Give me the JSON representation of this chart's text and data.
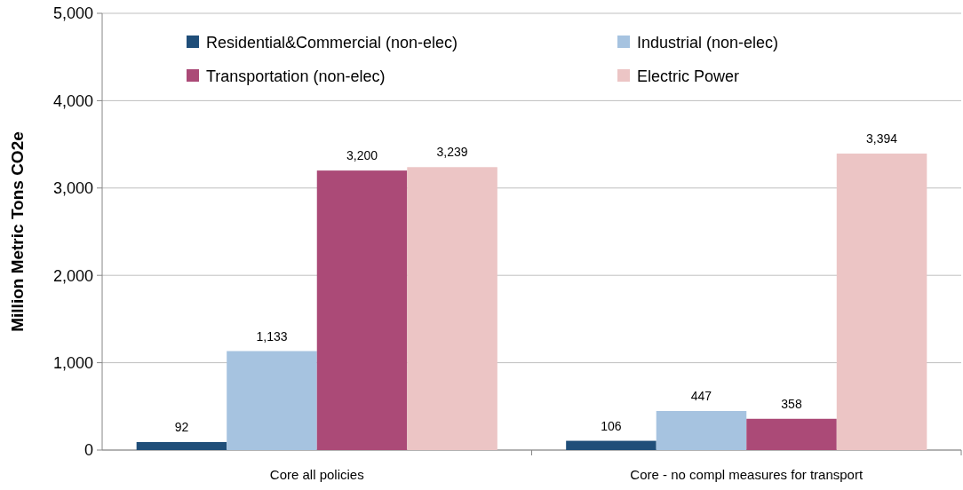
{
  "chart_data": {
    "type": "bar",
    "ylabel": "Million Metric Tons CO2e",
    "categories": [
      "Core all policies",
      "Core - no compl measures for transport"
    ],
    "series": [
      {
        "name": "Residential&Commercial (non-elec)",
        "color": "#1f4e79",
        "values": [
          92,
          106
        ],
        "value_labels": [
          "92",
          "106"
        ]
      },
      {
        "name": "Industrial (non-elec)",
        "color": "#a6c3e0",
        "values": [
          1133,
          447
        ],
        "value_labels": [
          "1,133",
          "447"
        ]
      },
      {
        "name": "Transportation (non-elec)",
        "color": "#ab4a77",
        "values": [
          3200,
          358
        ],
        "value_labels": [
          "3,200",
          "358"
        ]
      },
      {
        "name": "Electric Power",
        "color": "#ecc5c5",
        "values": [
          3239,
          3394
        ],
        "value_labels": [
          "3,239",
          "3,394"
        ]
      }
    ],
    "ylim": [
      0,
      5000
    ],
    "yticks": [
      {
        "value": 0,
        "label": "0"
      },
      {
        "value": 1000,
        "label": "1,000"
      },
      {
        "value": 2000,
        "label": "2,000"
      },
      {
        "value": 3000,
        "label": "3,000"
      },
      {
        "value": 4000,
        "label": "4,000"
      },
      {
        "value": 5000,
        "label": "5,000"
      }
    ],
    "grid": "y",
    "legend": "top"
  }
}
